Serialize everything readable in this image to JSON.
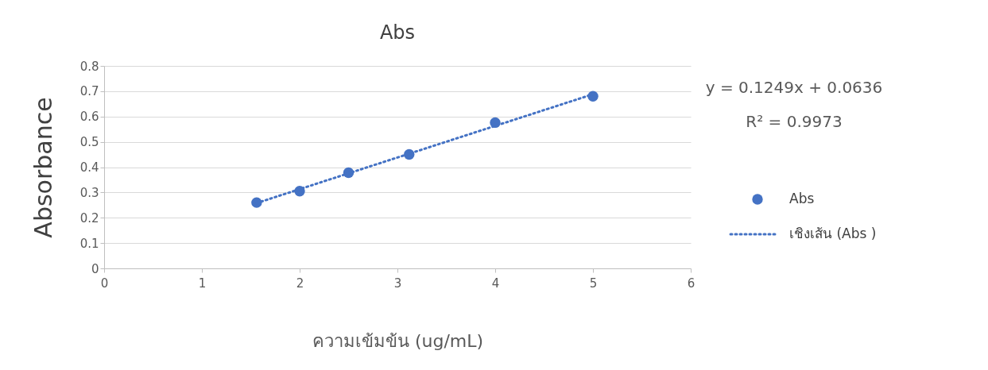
{
  "chart_data": {
    "type": "scatter",
    "title": "Abs",
    "xlabel": "ความเข้มข้น (ug/mL)",
    "ylabel": "Absorbance",
    "xlim": [
      0,
      6
    ],
    "xticks": [
      0,
      1,
      2,
      3,
      4,
      5,
      6
    ],
    "ylim": [
      0,
      0.8
    ],
    "yticks": [
      0,
      0.1,
      0.2,
      0.3,
      0.4,
      0.5,
      0.6,
      0.7,
      0.8
    ],
    "grid": "y",
    "legend": "right",
    "annotations": [
      "y = 0.1249x + 0.0636",
      "R² = 0.9973"
    ],
    "series": [
      {
        "name": "Abs",
        "type": "scatter",
        "marker": "circle",
        "color": "#4472c4",
        "x": [
          1.56,
          2,
          2.5,
          3.12,
          4,
          5
        ],
        "values": [
          0.26,
          0.305,
          0.378,
          0.45,
          0.576,
          0.68
        ]
      },
      {
        "name": "เชิงเส้น (Abs )",
        "type": "line",
        "color": "#4472c4",
        "line_style": "dotted",
        "marker": "none",
        "x": [
          1.56,
          5
        ],
        "values": [
          0.258,
          0.688
        ]
      }
    ]
  }
}
